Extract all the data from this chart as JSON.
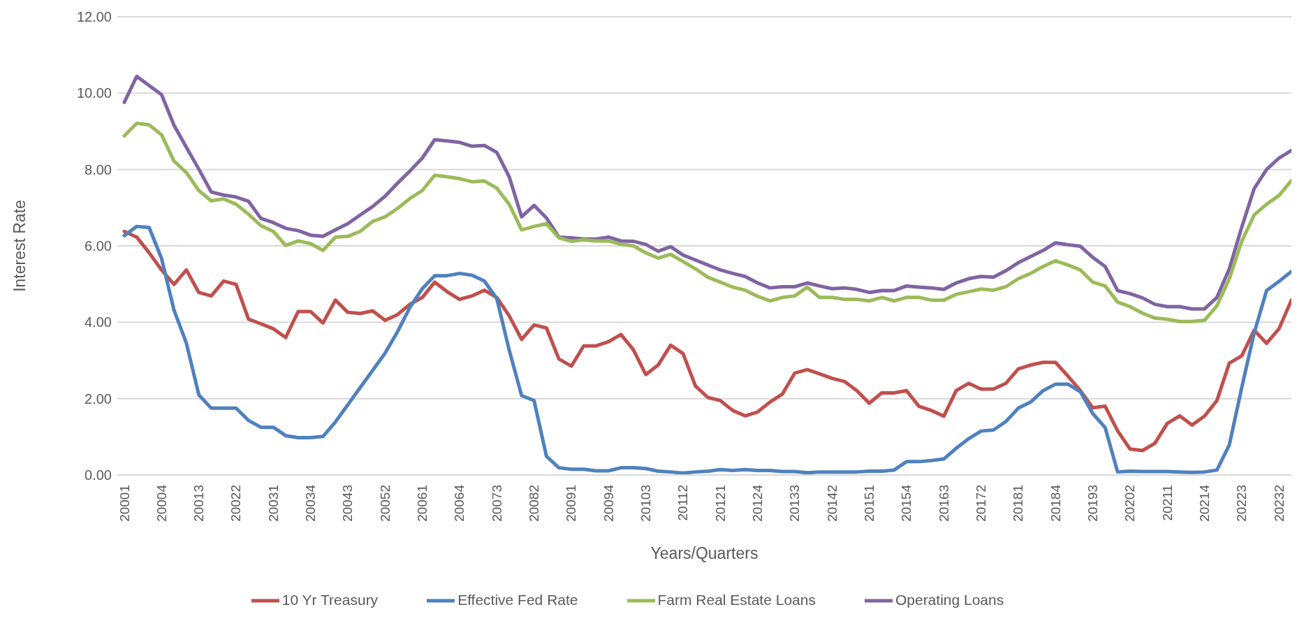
{
  "chart_data": {
    "type": "line",
    "xlabel": "Years/Quarters",
    "ylabel": "Interest Rate",
    "categories": [
      "20001",
      null,
      null,
      "20004",
      null,
      null,
      "20013",
      null,
      null,
      "20022",
      null,
      null,
      "20031",
      null,
      null,
      "20034",
      null,
      null,
      "20043",
      null,
      null,
      "20052",
      null,
      null,
      "20061",
      null,
      null,
      "20064",
      null,
      null,
      "20073",
      null,
      null,
      "20082",
      null,
      null,
      "20091",
      null,
      null,
      "20094",
      null,
      null,
      "20103",
      null,
      null,
      "20112",
      null,
      null,
      "20121",
      null,
      null,
      "20124",
      null,
      null,
      "20133",
      null,
      null,
      "20142",
      null,
      null,
      "20151",
      null,
      null,
      "20154",
      null,
      null,
      "20163",
      null,
      null,
      "20172",
      null,
      null,
      "20181",
      null,
      null,
      "20184",
      null,
      null,
      "20193",
      null,
      null,
      "20202",
      null,
      null,
      "20211",
      null,
      null,
      "20214",
      null,
      null,
      "20223",
      null,
      null,
      "20232",
      null
    ],
    "series": [
      {
        "name": "Operating Loans",
        "color": "#8064a2",
        "values": [
          9.76,
          10.44,
          10.2,
          9.96,
          9.16,
          8.58,
          8.01,
          7.41,
          7.33,
          7.28,
          7.17,
          6.72,
          6.61,
          6.46,
          6.4,
          6.28,
          6.25,
          6.42,
          6.58,
          6.81,
          7.03,
          7.3,
          7.64,
          7.96,
          8.3,
          8.78,
          8.75,
          8.71,
          8.61,
          8.63,
          8.45,
          7.81,
          6.76,
          7.06,
          6.73,
          6.23,
          6.21,
          6.18,
          6.18,
          6.23,
          6.13,
          6.12,
          6.04,
          5.86,
          5.98,
          5.76,
          5.63,
          5.5,
          5.37,
          5.28,
          5.2,
          5.03,
          4.9,
          4.93,
          4.93,
          5.03,
          4.95,
          4.88,
          4.9,
          4.86,
          4.78,
          4.83,
          4.83,
          4.95,
          4.92,
          4.9,
          4.86,
          5.03,
          5.14,
          5.2,
          5.18,
          5.35,
          5.56,
          5.72,
          5.88,
          6.08,
          6.03,
          5.99,
          5.7,
          5.46,
          4.83,
          4.75,
          4.64,
          4.47,
          4.41,
          4.41,
          4.35,
          4.35,
          4.65,
          5.4,
          6.49,
          7.5,
          8.0,
          8.3,
          8.5
        ]
      },
      {
        "name": "Farm Real Estate Loans",
        "color": "#9bbb59",
        "values": [
          8.88,
          9.21,
          9.17,
          8.91,
          8.22,
          7.92,
          7.45,
          7.18,
          7.23,
          7.09,
          6.83,
          6.53,
          6.38,
          6.01,
          6.13,
          6.06,
          5.88,
          6.23,
          6.25,
          6.38,
          6.64,
          6.76,
          6.98,
          7.24,
          7.45,
          7.85,
          7.81,
          7.76,
          7.68,
          7.7,
          7.51,
          7.09,
          6.42,
          6.51,
          6.58,
          6.21,
          6.12,
          6.16,
          6.13,
          6.13,
          6.04,
          6.0,
          5.82,
          5.68,
          5.78,
          5.59,
          5.4,
          5.18,
          5.05,
          4.92,
          4.84,
          4.68,
          4.56,
          4.65,
          4.69,
          4.92,
          4.65,
          4.65,
          4.6,
          4.6,
          4.56,
          4.65,
          4.56,
          4.65,
          4.65,
          4.58,
          4.58,
          4.73,
          4.8,
          4.87,
          4.84,
          4.93,
          5.14,
          5.28,
          5.46,
          5.61,
          5.5,
          5.37,
          5.05,
          4.95,
          4.53,
          4.41,
          4.24,
          4.11,
          4.08,
          4.02,
          4.02,
          4.05,
          4.43,
          5.14,
          6.12,
          6.81,
          7.09,
          7.32,
          7.71
        ]
      },
      {
        "name": "10 Yr Treasury",
        "color": "#c0504d",
        "values": [
          6.38,
          6.23,
          5.82,
          5.37,
          4.99,
          5.37,
          4.78,
          4.69,
          5.08,
          4.99,
          4.08,
          3.96,
          3.83,
          3.6,
          4.28,
          4.28,
          3.98,
          4.58,
          4.26,
          4.23,
          4.3,
          4.05,
          4.2,
          4.47,
          4.65,
          5.05,
          4.8,
          4.6,
          4.69,
          4.84,
          4.65,
          4.17,
          3.55,
          3.93,
          3.85,
          3.04,
          2.85,
          3.38,
          3.38,
          3.49,
          3.68,
          3.28,
          2.63,
          2.88,
          3.4,
          3.18,
          2.33,
          2.03,
          1.95,
          1.69,
          1.55,
          1.65,
          1.91,
          2.12,
          2.67,
          2.76,
          2.65,
          2.53,
          2.45,
          2.21,
          1.88,
          2.15,
          2.15,
          2.21,
          1.8,
          1.69,
          1.54,
          2.21,
          2.4,
          2.25,
          2.25,
          2.4,
          2.78,
          2.88,
          2.95,
          2.95,
          2.59,
          2.21,
          1.76,
          1.8,
          1.16,
          0.68,
          0.64,
          0.83,
          1.35,
          1.55,
          1.31,
          1.54,
          1.95,
          2.93,
          3.12,
          3.79,
          3.45,
          3.83,
          4.58
        ]
      },
      {
        "name": "Effective Fed Rate",
        "color": "#4f81bd",
        "values": [
          6.27,
          6.51,
          6.48,
          5.67,
          4.32,
          3.45,
          2.1,
          1.75,
          1.75,
          1.75,
          1.43,
          1.25,
          1.25,
          1.03,
          0.98,
          0.98,
          1.01,
          1.39,
          1.84,
          2.29,
          2.74,
          3.19,
          3.75,
          4.39,
          4.88,
          5.22,
          5.22,
          5.28,
          5.23,
          5.08,
          4.62,
          3.27,
          2.08,
          1.95,
          0.49,
          0.19,
          0.15,
          0.15,
          0.11,
          0.11,
          0.19,
          0.19,
          0.17,
          0.1,
          0.08,
          0.05,
          0.08,
          0.1,
          0.14,
          0.12,
          0.14,
          0.12,
          0.12,
          0.09,
          0.09,
          0.06,
          0.08,
          0.08,
          0.08,
          0.08,
          0.1,
          0.1,
          0.13,
          0.35,
          0.35,
          0.38,
          0.42,
          0.7,
          0.95,
          1.15,
          1.18,
          1.4,
          1.75,
          1.91,
          2.21,
          2.38,
          2.38,
          2.18,
          1.61,
          1.24,
          0.08,
          0.1,
          0.09,
          0.09,
          0.09,
          0.08,
          0.07,
          0.08,
          0.13,
          0.79,
          2.29,
          3.72,
          4.83,
          5.07,
          5.33
        ]
      }
    ],
    "ylim": [
      0,
      12
    ],
    "yticks": [
      {
        "value": 0,
        "label": "0.00"
      },
      {
        "value": 2,
        "label": "2.00"
      },
      {
        "value": 4,
        "label": "4.00"
      },
      {
        "value": 6,
        "label": "6.00"
      },
      {
        "value": 8,
        "label": "8.00"
      },
      {
        "value": 10,
        "label": "10.00"
      },
      {
        "value": 12,
        "label": "12.00"
      }
    ],
    "grid": "y",
    "legend": "bottom",
    "marker": "none",
    "line_style": "solid"
  }
}
